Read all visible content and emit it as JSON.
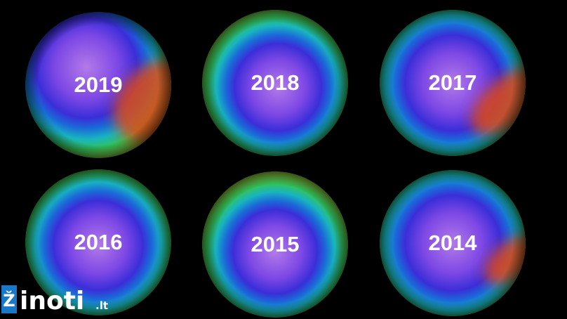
{
  "panels": [
    {
      "label": "2019"
    },
    {
      "label": "2018"
    },
    {
      "label": "2017"
    },
    {
      "label": "2016"
    },
    {
      "label": "2015"
    },
    {
      "label": "2014"
    }
  ],
  "logo": {
    "icon": "Ž",
    "text": "inoti",
    "suffix": ".lt"
  }
}
